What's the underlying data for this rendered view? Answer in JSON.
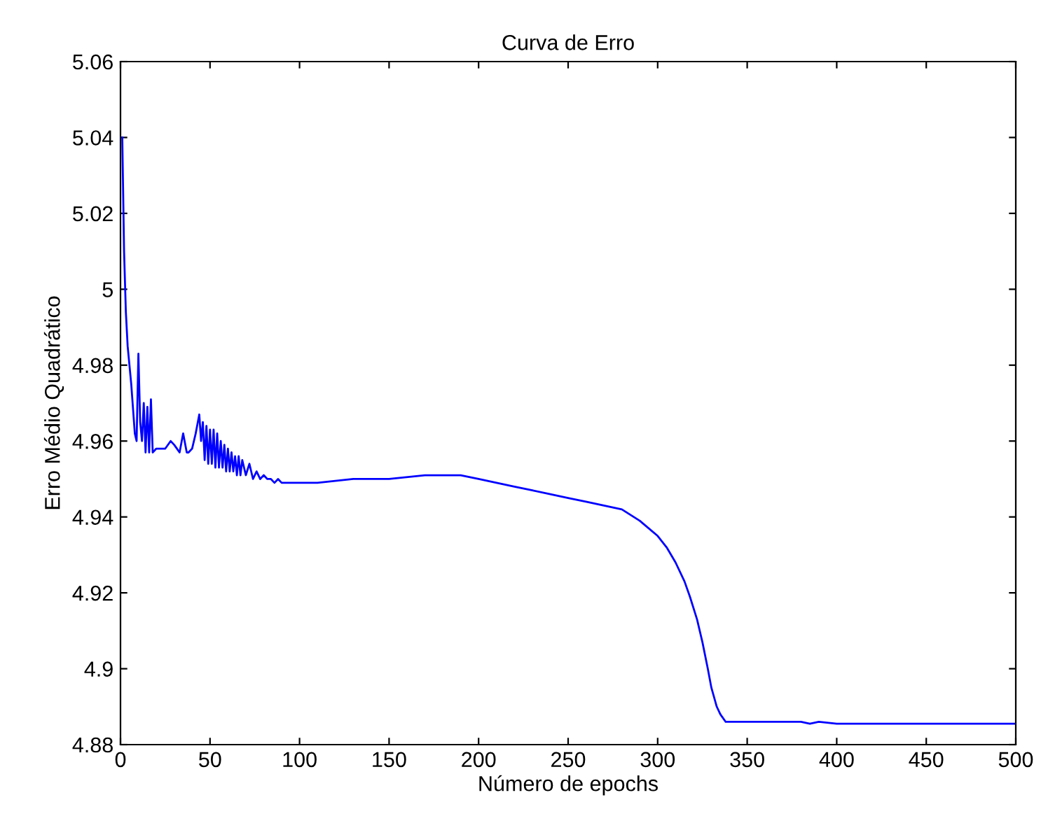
{
  "chart_data": {
    "type": "line",
    "title": "Curva de Erro",
    "xlabel": "Número de epochs",
    "ylabel": "Erro Médio Quadrático",
    "series": [
      {
        "color": "#0000ff",
        "x": [
          1,
          2,
          3,
          4,
          6,
          8,
          9,
          10,
          11,
          12,
          13,
          14,
          15,
          16,
          17,
          18,
          20,
          25,
          28,
          30,
          33,
          35,
          37,
          38,
          40,
          42,
          44,
          45,
          46,
          47,
          48,
          49,
          50,
          51,
          52,
          53,
          54,
          55,
          56,
          57,
          58,
          59,
          60,
          61,
          62,
          63,
          64,
          65,
          66,
          67,
          68,
          70,
          72,
          74,
          76,
          78,
          80,
          82,
          84,
          86,
          88,
          90,
          95,
          100,
          110,
          130,
          150,
          170,
          190,
          200,
          210,
          220,
          230,
          240,
          250,
          260,
          270,
          280,
          290,
          300,
          305,
          310,
          315,
          318,
          322,
          325,
          328,
          330,
          333,
          335,
          338,
          340,
          345,
          360,
          380,
          385,
          390,
          400,
          420,
          450,
          460,
          500
        ],
        "values": [
          5.04,
          5.01,
          4.994,
          4.985,
          4.975,
          4.962,
          4.96,
          4.983,
          4.965,
          4.96,
          4.97,
          4.957,
          4.969,
          4.957,
          4.971,
          4.957,
          4.958,
          4.958,
          4.96,
          4.959,
          4.957,
          4.962,
          4.957,
          4.957,
          4.958,
          4.962,
          4.967,
          4.96,
          4.965,
          4.955,
          4.964,
          4.954,
          4.963,
          4.954,
          4.963,
          4.953,
          4.962,
          4.953,
          4.96,
          4.953,
          4.959,
          4.952,
          4.958,
          4.952,
          4.957,
          4.952,
          4.956,
          4.951,
          4.956,
          4.951,
          4.955,
          4.951,
          4.954,
          4.95,
          4.952,
          4.95,
          4.951,
          4.95,
          4.95,
          4.949,
          4.95,
          4.949,
          4.949,
          4.949,
          4.949,
          4.95,
          4.95,
          4.951,
          4.951,
          4.95,
          4.949,
          4.948,
          4.947,
          4.946,
          4.945,
          4.944,
          4.943,
          4.942,
          4.939,
          4.935,
          4.932,
          4.928,
          4.923,
          4.919,
          4.913,
          4.907,
          4.9,
          4.895,
          4.89,
          4.888,
          4.886,
          4.886,
          4.886,
          4.886,
          4.886,
          4.8855,
          4.886,
          4.8855,
          4.8855,
          4.8855,
          4.8855,
          4.8855
        ]
      }
    ],
    "xlim": [
      0,
      500
    ],
    "xticks": [
      0,
      50,
      100,
      150,
      200,
      250,
      300,
      350,
      400,
      450,
      500
    ],
    "ylim": [
      4.88,
      5.06
    ],
    "yticks": [
      4.88,
      4.9,
      4.92,
      4.94,
      4.96,
      4.98,
      {
        "value": 5,
        "label": "5"
      },
      5.02,
      5.04,
      5.06
    ],
    "grid": false,
    "legend": false,
    "marker": "none",
    "line_style": "solid"
  }
}
